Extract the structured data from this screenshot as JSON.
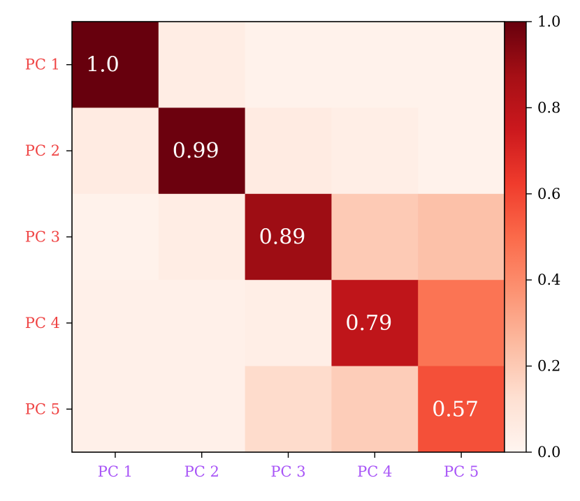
{
  "chart_data": {
    "type": "heatmap",
    "title": "",
    "xlabel": "",
    "ylabel": "",
    "x_categories": [
      "PC 1",
      "PC 2",
      "PC 3",
      "PC 4",
      "PC 5"
    ],
    "y_categories": [
      "PC 1",
      "PC 2",
      "PC 3",
      "PC 4",
      "PC 5"
    ],
    "values": [
      [
        1.0,
        0.05,
        0.02,
        0.02,
        0.02
      ],
      [
        0.06,
        0.99,
        0.06,
        0.04,
        0.02
      ],
      [
        0.02,
        0.05,
        0.89,
        0.2,
        0.23
      ],
      [
        0.03,
        0.03,
        0.04,
        0.79,
        0.47
      ],
      [
        0.03,
        0.03,
        0.14,
        0.19,
        0.57
      ]
    ],
    "annotations": [
      {
        "row": 0,
        "col": 0,
        "text": "1.0"
      },
      {
        "row": 1,
        "col": 1,
        "text": "0.99"
      },
      {
        "row": 2,
        "col": 2,
        "text": "0.89"
      },
      {
        "row": 3,
        "col": 3,
        "text": "0.79"
      },
      {
        "row": 4,
        "col": 4,
        "text": "0.57"
      }
    ],
    "colormap": "Reds",
    "colorbar": {
      "range": [
        0.0,
        1.0
      ],
      "ticks": [
        0.0,
        0.2,
        0.4,
        0.6,
        0.8,
        1.0
      ],
      "tick_labels": [
        "0.0",
        "0.2",
        "0.4",
        "0.6",
        "0.8",
        "1.0"
      ]
    },
    "x_tick_color": "#a855f7",
    "y_tick_color": "#ef4444",
    "annotation_color": "#ffffff"
  }
}
